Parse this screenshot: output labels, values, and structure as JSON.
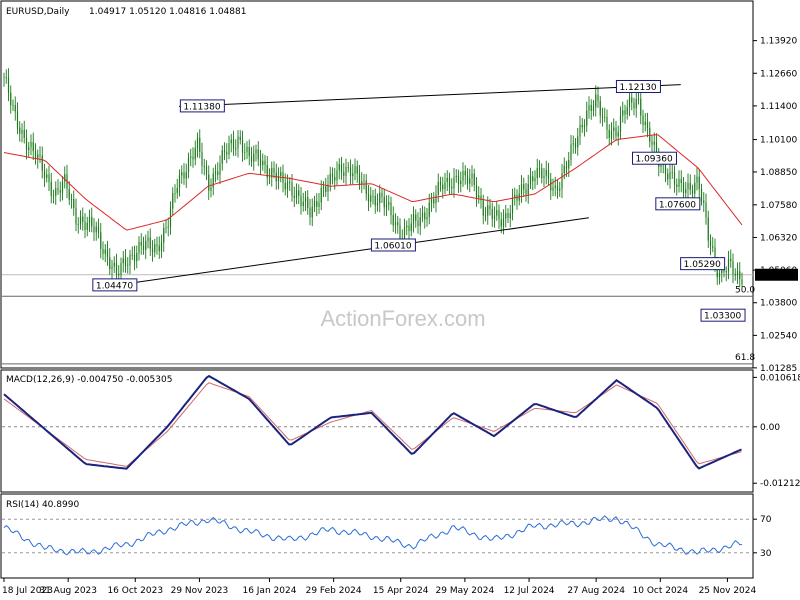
{
  "header": {
    "symbol": "EURUSD,Daily",
    "ohlc": "1.04917 1.05120 1.04816 1.04881"
  },
  "watermark": "ActionForex.com",
  "colors": {
    "candles": "#1a7a1a",
    "ma": "#dc2828",
    "macd_main": "#1a237e",
    "macd_signal": "#d06a6a",
    "rsi": "#2b6ed8",
    "lines": "#000000",
    "levels": "#666666"
  },
  "chart_data": [
    {
      "type": "line",
      "name": "price",
      "title": "EURUSD,Daily",
      "ylim": [
        1.0128,
        1.1545
      ],
      "yticks": [
        "1.13920",
        "1.12660",
        "1.11400",
        "1.10100",
        "1.08850",
        "1.07580",
        "1.06320",
        "1.05060",
        "1.03800",
        "1.02540",
        "1.01285"
      ],
      "ytick_values": [
        1.1392,
        1.1266,
        1.114,
        1.101,
        1.0885,
        1.0758,
        1.0632,
        1.0506,
        1.038,
        1.0254,
        1.01285
      ],
      "x_labels": [
        "18 Jul 2023",
        "31 Aug 2023",
        "16 Oct 2023",
        "29 Nov 2023",
        "16 Jan 2024",
        "29 Feb 2024",
        "15 Apr 2024",
        "29 May 2024",
        "12 Jul 2024",
        "27 Aug 2024",
        "10 Oct 2024",
        "25 Nov 2024"
      ],
      "x_dates": [
        "2023-07-18",
        "2023-08-31",
        "2023-10-16",
        "2023-11-29",
        "2024-01-16",
        "2024-02-29",
        "2024-04-15",
        "2024-05-29",
        "2024-07-12",
        "2024-08-27",
        "2024-10-10",
        "2024-11-25"
      ],
      "series": [
        {
          "x": [
            "2023-07-18",
            "2023-07-25",
            "2023-08-01",
            "2023-08-08",
            "2023-08-15",
            "2023-08-22",
            "2023-08-29",
            "2023-09-05",
            "2023-09-12",
            "2023-09-19",
            "2023-09-26",
            "2023-10-03",
            "2023-10-10",
            "2023-10-17",
            "2023-10-24",
            "2023-10-31",
            "2023-11-07",
            "2023-11-14",
            "2023-11-21",
            "2023-11-28",
            "2023-12-05",
            "2023-12-12",
            "2023-12-19",
            "2023-12-26",
            "2024-01-02",
            "2024-01-09",
            "2024-01-16",
            "2024-01-23",
            "2024-01-30",
            "2024-02-06",
            "2024-02-13",
            "2024-02-20",
            "2024-02-27",
            "2024-03-05",
            "2024-03-12",
            "2024-03-19",
            "2024-03-26",
            "2024-04-02",
            "2024-04-09",
            "2024-04-16",
            "2024-04-23",
            "2024-04-30",
            "2024-05-07",
            "2024-05-14",
            "2024-05-21",
            "2024-05-28",
            "2024-06-04",
            "2024-06-11",
            "2024-06-18",
            "2024-06-25",
            "2024-07-02",
            "2024-07-09",
            "2024-07-16",
            "2024-07-23",
            "2024-07-30",
            "2024-08-06",
            "2024-08-13",
            "2024-08-20",
            "2024-08-27",
            "2024-09-03",
            "2024-09-10",
            "2024-09-17",
            "2024-09-24",
            "2024-10-01",
            "2024-10-08",
            "2024-10-15",
            "2024-10-22",
            "2024-10-29",
            "2024-11-05",
            "2024-11-12",
            "2024-11-19",
            "2024-11-26",
            "2024-12-03",
            "2024-12-05"
          ],
          "values": [
            1.125,
            1.11,
            1.102,
            1.095,
            1.088,
            1.08,
            1.084,
            1.072,
            1.068,
            1.066,
            1.057,
            1.048,
            1.055,
            1.058,
            1.06,
            1.06,
            1.067,
            1.085,
            1.092,
            1.098,
            1.084,
            1.09,
            1.098,
            1.102,
            1.093,
            1.095,
            1.088,
            1.085,
            1.084,
            1.077,
            1.073,
            1.081,
            1.084,
            1.091,
            1.089,
            1.084,
            1.079,
            1.077,
            1.072,
            1.064,
            1.068,
            1.072,
            1.077,
            1.084,
            1.086,
            1.085,
            1.086,
            1.073,
            1.071,
            1.071,
            1.077,
            1.082,
            1.089,
            1.086,
            1.082,
            1.09,
            1.1,
            1.112,
            1.115,
            1.106,
            1.104,
            1.113,
            1.118,
            1.103,
            1.094,
            1.089,
            1.082,
            1.083,
            1.085,
            1.063,
            1.05,
            1.052,
            1.047,
            1.049
          ]
        },
        {
          "name": "MA",
          "x": [
            "2023-07-18",
            "2023-08-15",
            "2023-09-12",
            "2023-10-10",
            "2023-11-07",
            "2023-12-05",
            "2024-01-02",
            "2024-01-30",
            "2024-02-27",
            "2024-03-26",
            "2024-04-23",
            "2024-05-21",
            "2024-06-18",
            "2024-07-16",
            "2024-08-13",
            "2024-09-10",
            "2024-10-08",
            "2024-11-05",
            "2024-12-05"
          ],
          "values": [
            1.096,
            1.093,
            1.078,
            1.066,
            1.07,
            1.083,
            1.088,
            1.086,
            1.083,
            1.084,
            1.077,
            1.08,
            1.077,
            1.08,
            1.09,
            1.101,
            1.103,
            1.09,
            1.068
          ]
        }
      ],
      "annotations": [
        {
          "label": "1.11380",
          "x": "2023-12-01",
          "y": 1.1138
        },
        {
          "label": "1.04470",
          "x": "2023-10-02",
          "y": 1.0447
        },
        {
          "label": "1.06010",
          "x": "2024-04-10",
          "y": 1.0601
        },
        {
          "label": "1.12130",
          "x": "2024-09-25",
          "y": 1.1213
        },
        {
          "label": "1.09360",
          "x": "2024-10-06",
          "y": 1.0936
        },
        {
          "label": "1.07600",
          "x": "2024-10-22",
          "y": 1.076
        },
        {
          "label": "1.05290",
          "x": "2024-11-08",
          "y": 1.0529
        },
        {
          "label": "1.03300",
          "x": "2024-11-22",
          "y": 1.033
        }
      ],
      "trendlines": [
        {
          "from": [
            "2023-10-02",
            1.0447
          ],
          "to": [
            "2024-08-22",
            1.0708
          ]
        },
        {
          "from": [
            "2023-11-15",
            1.1138
          ],
          "to": [
            "2024-10-24",
            1.1222
          ]
        }
      ],
      "levels": [
        {
          "label": "50.0",
          "y": 1.0405
        },
        {
          "label": "61.8",
          "y": 1.0144
        }
      ],
      "current_price": {
        "label": "1.04881",
        "y": 1.04881
      },
      "grid": false
    },
    {
      "type": "line",
      "name": "macd",
      "title": "MACD(12,26,9) -0.004750 -0.005305",
      "ylim": [
        -0.014,
        0.0122
      ],
      "yticks": [
        "0.010618",
        "0.00",
        "-0.01212"
      ],
      "ytick_values": [
        0.010618,
        0.0,
        -0.01212
      ],
      "series": [
        {
          "name": "MACD",
          "x": [
            "2023-07-18",
            "2023-09-12",
            "2023-10-10",
            "2023-11-07",
            "2023-12-05",
            "2024-01-02",
            "2024-01-30",
            "2024-02-27",
            "2024-03-26",
            "2024-04-23",
            "2024-05-21",
            "2024-06-18",
            "2024-07-16",
            "2024-08-13",
            "2024-09-10",
            "2024-10-08",
            "2024-11-05",
            "2024-12-05"
          ],
          "values": [
            0.007,
            -0.008,
            -0.009,
            0.0,
            0.011,
            0.006,
            -0.004,
            0.002,
            0.003,
            -0.006,
            0.003,
            -0.002,
            0.005,
            0.002,
            0.01,
            0.004,
            -0.009,
            -0.0048
          ]
        },
        {
          "name": "Signal",
          "x": [
            "2023-07-18",
            "2023-09-12",
            "2023-10-10",
            "2023-11-07",
            "2023-12-05",
            "2024-01-02",
            "2024-01-30",
            "2024-02-27",
            "2024-03-26",
            "2024-04-23",
            "2024-05-21",
            "2024-06-18",
            "2024-07-16",
            "2024-08-13",
            "2024-09-10",
            "2024-10-08",
            "2024-11-05",
            "2024-12-05"
          ],
          "values": [
            0.006,
            -0.007,
            -0.0085,
            -0.001,
            0.0095,
            0.0065,
            -0.003,
            0.001,
            0.0035,
            -0.005,
            0.002,
            -0.001,
            0.004,
            0.003,
            0.009,
            0.005,
            -0.008,
            -0.0053
          ]
        }
      ],
      "grid": false
    },
    {
      "type": "line",
      "name": "rsi",
      "title": "RSI(14) 40.8990",
      "ylim": [
        0,
        100
      ],
      "yticks": [
        "70",
        "30"
      ],
      "ytick_values": [
        70,
        30
      ],
      "series": [
        {
          "x": [
            "2023-07-18",
            "2023-08-15",
            "2023-09-12",
            "2023-10-10",
            "2023-11-07",
            "2023-12-05",
            "2024-01-02",
            "2024-01-30",
            "2024-02-27",
            "2024-03-26",
            "2024-04-23",
            "2024-05-21",
            "2024-06-18",
            "2024-07-16",
            "2024-08-13",
            "2024-09-10",
            "2024-10-08",
            "2024-11-05",
            "2024-12-05"
          ],
          "values": [
            60,
            35,
            30,
            40,
            58,
            70,
            55,
            45,
            58,
            50,
            38,
            60,
            45,
            62,
            65,
            72,
            40,
            30,
            41
          ]
        }
      ],
      "grid": false
    }
  ]
}
